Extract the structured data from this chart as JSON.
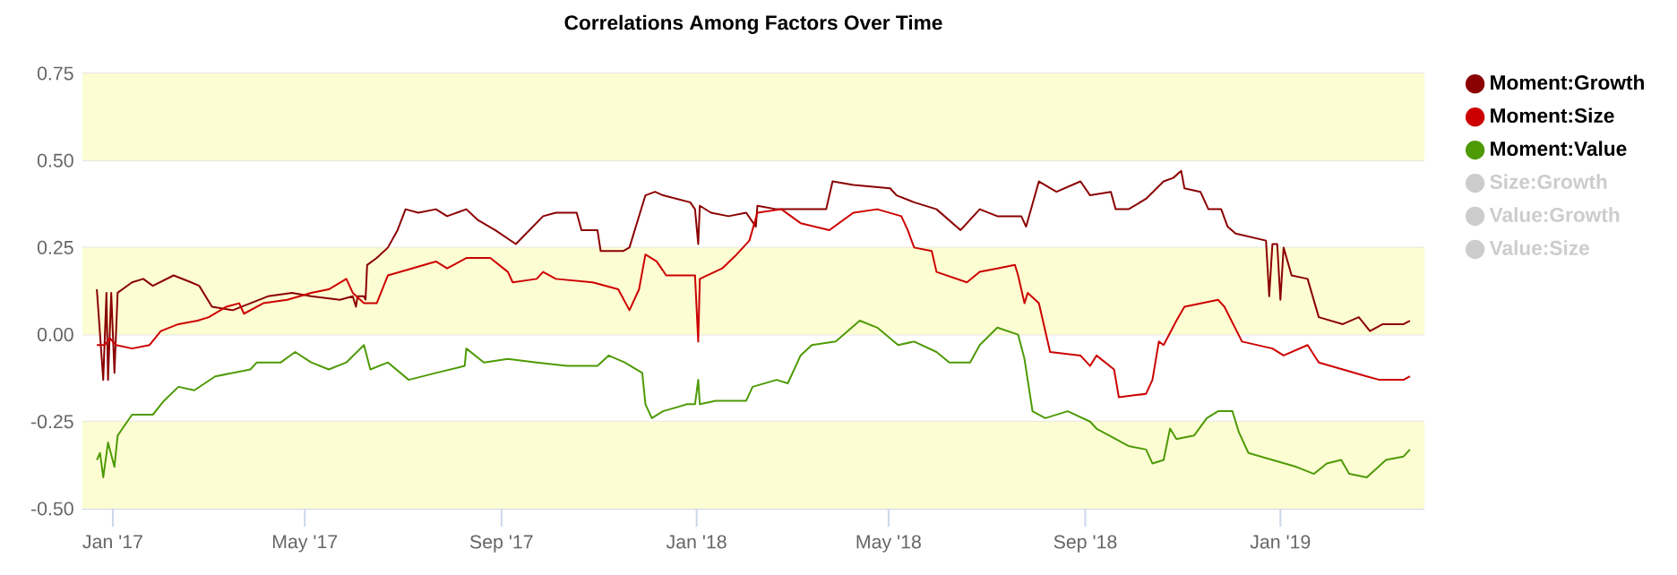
{
  "chart_data": {
    "type": "line",
    "title": "Correlations Among Factors Over Time",
    "xlim": [
      "2016-12-13",
      "2019-04-01"
    ],
    "xticks": [
      {
        "value": "2017-01-01",
        "label": "Jan '17"
      },
      {
        "value": "2017-05-01",
        "label": "May '17"
      },
      {
        "value": "2017-09-01",
        "label": "Sep '17"
      },
      {
        "value": "2018-01-01",
        "label": "Jan '18"
      },
      {
        "value": "2018-05-01",
        "label": "May '18"
      },
      {
        "value": "2018-09-01",
        "label": "Sep '18"
      },
      {
        "value": "2019-01-01",
        "label": "Jan '19"
      }
    ],
    "ylim": [
      -0.5,
      0.75
    ],
    "yticks": [
      {
        "value": -0.5,
        "label": "-0.50"
      },
      {
        "value": -0.25,
        "label": "-0.25"
      },
      {
        "value": 0,
        "label": "0.00"
      },
      {
        "value": 0.25,
        "label": "0.25"
      },
      {
        "value": 0.5,
        "label": "0.50"
      },
      {
        "value": 0.75,
        "label": "0.75"
      }
    ],
    "grid": "y",
    "legend": "right",
    "bands": [
      {
        "axis": "y",
        "from": 0.5,
        "to": 0.75,
        "color": "#fdfdd3"
      },
      {
        "axis": "y",
        "from": 0,
        "to": 0.25,
        "color": "#fdfdd3"
      },
      {
        "axis": "y",
        "from": -0.5,
        "to": -0.25,
        "color": "#fdfdd3"
      }
    ],
    "series": [
      {
        "name": "Moment:Growth",
        "color": "#8b0000",
        "x": [
          "2016-12-22",
          "2016-12-26",
          "2016-12-28",
          "2016-12-29",
          "2016-12-31",
          "2017-01-02",
          "2017-01-04",
          "2017-01-13",
          "2017-01-20",
          "2017-01-26",
          "2017-02-08",
          "2017-02-19",
          "2017-02-24",
          "2017-03-04",
          "2017-03-17",
          "2017-03-28",
          "2017-04-08",
          "2017-04-23",
          "2017-05-05",
          "2017-05-23",
          "2017-05-31",
          "2017-06-02",
          "2017-06-03",
          "2017-06-07",
          "2017-06-08",
          "2017-06-09",
          "2017-06-15",
          "2017-06-22",
          "2017-06-28",
          "2017-07-03",
          "2017-07-11",
          "2017-07-22",
          "2017-07-29",
          "2017-08-10",
          "2017-08-17",
          "2017-08-28",
          "2017-09-10",
          "2017-09-27",
          "2017-10-05",
          "2017-10-18",
          "2017-10-21",
          "2017-10-31",
          "2017-11-02",
          "2017-11-16",
          "2017-11-20",
          "2017-11-24",
          "2017-11-30",
          "2017-12-06",
          "2017-12-11",
          "2017-12-28",
          "2017-12-31",
          "2018-01-02",
          "2018-01-03",
          "2018-01-10",
          "2018-01-21",
          "2018-02-01",
          "2018-02-07",
          "2018-02-08",
          "2018-02-20",
          "2018-03-07",
          "2018-03-23",
          "2018-03-27",
          "2018-04-09",
          "2018-05-02",
          "2018-05-06",
          "2018-05-17",
          "2018-05-31",
          "2018-06-15",
          "2018-06-27",
          "2018-07-08",
          "2018-07-23",
          "2018-07-26",
          "2018-08-03",
          "2018-08-14",
          "2018-08-29",
          "2018-09-04",
          "2018-09-17",
          "2018-09-20",
          "2018-09-28",
          "2018-10-09",
          "2018-10-20",
          "2018-10-26",
          "2018-10-31",
          "2018-11-02",
          "2018-11-12",
          "2018-11-17",
          "2018-11-25",
          "2018-11-29",
          "2018-12-04",
          "2018-12-23",
          "2018-12-25",
          "2018-12-27",
          "2018-12-30",
          "2019-01-01",
          "2019-01-03",
          "2019-01-08",
          "2019-01-18",
          "2019-01-25",
          "2019-02-09",
          "2019-02-19",
          "2019-02-26",
          "2019-03-06",
          "2019-03-19",
          "2019-03-23"
        ],
        "values": [
          0.13,
          -0.13,
          0.12,
          -0.13,
          0.12,
          -0.11,
          0.12,
          0.15,
          0.16,
          0.14,
          0.17,
          0.15,
          0.14,
          0.08,
          0.07,
          0.09,
          0.11,
          0.12,
          0.11,
          0.1,
          0.11,
          0.08,
          0.11,
          0.11,
          0.1,
          0.2,
          0.22,
          0.25,
          0.3,
          0.36,
          0.35,
          0.36,
          0.34,
          0.36,
          0.33,
          0.3,
          0.26,
          0.34,
          0.35,
          0.35,
          0.3,
          0.3,
          0.24,
          0.24,
          0.25,
          0.31,
          0.4,
          0.41,
          0.4,
          0.38,
          0.36,
          0.26,
          0.37,
          0.35,
          0.34,
          0.35,
          0.31,
          0.37,
          0.36,
          0.36,
          0.36,
          0.44,
          0.43,
          0.42,
          0.4,
          0.38,
          0.36,
          0.3,
          0.36,
          0.34,
          0.34,
          0.31,
          0.44,
          0.41,
          0.44,
          0.4,
          0.41,
          0.36,
          0.36,
          0.39,
          0.44,
          0.45,
          0.47,
          0.42,
          0.41,
          0.36,
          0.36,
          0.31,
          0.29,
          0.27,
          0.11,
          0.26,
          0.26,
          0.1,
          0.25,
          0.17,
          0.16,
          0.05,
          0.03,
          0.05,
          0.01,
          0.03,
          0.03,
          0.04
        ]
      },
      {
        "name": "Moment:Size",
        "color": "#cc0000",
        "x": [
          "2016-12-22",
          "2016-12-27",
          "2016-12-30",
          "2017-01-03",
          "2017-01-13",
          "2017-01-24",
          "2017-01-31",
          "2017-02-11",
          "2017-02-23",
          "2017-03-02",
          "2017-03-13",
          "2017-03-21",
          "2017-03-24",
          "2017-04-05",
          "2017-04-20",
          "2017-05-05",
          "2017-05-16",
          "2017-05-27",
          "2017-05-31",
          "2017-06-07",
          "2017-06-15",
          "2017-06-22",
          "2017-07-07",
          "2017-07-22",
          "2017-07-29",
          "2017-08-10",
          "2017-08-25",
          "2017-09-05",
          "2017-09-08",
          "2017-09-23",
          "2017-09-27",
          "2017-10-05",
          "2017-10-28",
          "2017-11-13",
          "2017-11-20",
          "2017-11-26",
          "2017-11-30",
          "2017-12-07",
          "2017-12-13",
          "2017-12-31",
          "2018-01-02",
          "2018-01-03",
          "2018-01-17",
          "2018-01-26",
          "2018-02-03",
          "2018-02-08",
          "2018-02-23",
          "2018-03-07",
          "2018-03-25",
          "2018-04-09",
          "2018-04-24",
          "2018-05-09",
          "2018-05-13",
          "2018-05-17",
          "2018-05-28",
          "2018-05-31",
          "2018-06-19",
          "2018-06-27",
          "2018-07-08",
          "2018-07-19",
          "2018-07-21",
          "2018-07-25",
          "2018-07-27",
          "2018-08-03",
          "2018-08-10",
          "2018-08-29",
          "2018-09-04",
          "2018-09-08",
          "2018-09-19",
          "2018-09-22",
          "2018-10-09",
          "2018-10-13",
          "2018-10-17",
          "2018-10-20",
          "2018-10-28",
          "2018-11-02",
          "2018-11-23",
          "2018-11-27",
          "2018-12-08",
          "2018-12-27",
          "2019-01-03",
          "2019-01-18",
          "2019-01-25",
          "2019-02-09",
          "2019-02-24",
          "2019-03-04",
          "2019-03-19",
          "2019-03-23"
        ],
        "values": [
          -0.03,
          -0.03,
          -0.01,
          -0.03,
          -0.04,
          -0.03,
          0.01,
          0.03,
          0.04,
          0.05,
          0.08,
          0.09,
          0.06,
          0.09,
          0.1,
          0.12,
          0.13,
          0.16,
          0.12,
          0.09,
          0.09,
          0.17,
          0.19,
          0.21,
          0.19,
          0.22,
          0.22,
          0.18,
          0.15,
          0.16,
          0.18,
          0.16,
          0.15,
          0.13,
          0.07,
          0.13,
          0.23,
          0.21,
          0.17,
          0.17,
          -0.02,
          0.16,
          0.19,
          0.23,
          0.27,
          0.35,
          0.36,
          0.32,
          0.3,
          0.35,
          0.36,
          0.34,
          0.3,
          0.25,
          0.24,
          0.18,
          0.15,
          0.18,
          0.19,
          0.2,
          0.17,
          0.09,
          0.12,
          0.09,
          -0.05,
          -0.06,
          -0.09,
          -0.06,
          -0.1,
          -0.18,
          -0.17,
          -0.13,
          -0.02,
          -0.03,
          0.04,
          0.08,
          0.1,
          0.08,
          -0.02,
          -0.04,
          -0.06,
          -0.03,
          -0.08,
          -0.1,
          -0.12,
          -0.13,
          -0.13,
          -0.12
        ]
      },
      {
        "name": "Moment:Value",
        "color": "#4e9a06",
        "x": [
          "2016-12-22",
          "2016-12-24",
          "2016-12-26",
          "2016-12-29",
          "2017-01-02",
          "2017-01-04",
          "2017-01-07",
          "2017-01-13",
          "2017-01-26",
          "2017-02-02",
          "2017-02-11",
          "2017-02-21",
          "2017-03-06",
          "2017-03-17",
          "2017-03-28",
          "2017-04-01",
          "2017-04-16",
          "2017-04-25",
          "2017-05-05",
          "2017-05-16",
          "2017-05-27",
          "2017-06-07",
          "2017-06-11",
          "2017-06-22",
          "2017-07-05",
          "2017-07-22",
          "2017-08-09",
          "2017-08-10",
          "2017-08-21",
          "2017-09-05",
          "2017-09-23",
          "2017-10-12",
          "2017-10-31",
          "2017-11-07",
          "2017-11-17",
          "2017-11-28",
          "2017-11-30",
          "2017-12-04",
          "2017-12-11",
          "2017-12-26",
          "2017-12-31",
          "2018-01-02",
          "2018-01-03",
          "2018-01-13",
          "2018-02-01",
          "2018-02-05",
          "2018-02-20",
          "2018-02-27",
          "2018-03-07",
          "2018-03-14",
          "2018-03-29",
          "2018-04-13",
          "2018-04-24",
          "2018-05-07",
          "2018-05-17",
          "2018-05-31",
          "2018-06-08",
          "2018-06-21",
          "2018-06-27",
          "2018-07-08",
          "2018-07-21",
          "2018-07-25",
          "2018-07-30",
          "2018-08-07",
          "2018-08-21",
          "2018-09-04",
          "2018-09-08",
          "2018-09-28",
          "2018-10-09",
          "2018-10-13",
          "2018-10-20",
          "2018-10-24",
          "2018-10-28",
          "2018-11-08",
          "2018-11-16",
          "2018-11-23",
          "2018-12-02",
          "2018-12-06",
          "2018-12-12",
          "2018-12-27",
          "2019-01-11",
          "2019-01-22",
          "2019-01-30",
          "2019-02-08",
          "2019-02-13",
          "2019-02-24",
          "2019-03-08",
          "2019-03-19",
          "2019-03-23"
        ],
        "values": [
          -0.36,
          -0.34,
          -0.41,
          -0.31,
          -0.38,
          -0.29,
          -0.27,
          -0.23,
          -0.23,
          -0.19,
          -0.15,
          -0.16,
          -0.12,
          -0.11,
          -0.1,
          -0.08,
          -0.08,
          -0.05,
          -0.08,
          -0.1,
          -0.08,
          -0.03,
          -0.1,
          -0.08,
          -0.13,
          -0.11,
          -0.09,
          -0.04,
          -0.08,
          -0.07,
          -0.08,
          -0.09,
          -0.09,
          -0.06,
          -0.08,
          -0.11,
          -0.2,
          -0.24,
          -0.22,
          -0.2,
          -0.2,
          -0.13,
          -0.2,
          -0.19,
          -0.19,
          -0.15,
          -0.13,
          -0.14,
          -0.06,
          -0.03,
          -0.02,
          0.04,
          0.02,
          -0.03,
          -0.02,
          -0.05,
          -0.08,
          -0.08,
          -0.03,
          0.02,
          0,
          -0.07,
          -0.22,
          -0.24,
          -0.22,
          -0.25,
          -0.27,
          -0.32,
          -0.33,
          -0.37,
          -0.36,
          -0.27,
          -0.3,
          -0.29,
          -0.24,
          -0.22,
          -0.22,
          -0.28,
          -0.34,
          -0.36,
          -0.38,
          -0.4,
          -0.37,
          -0.36,
          -0.4,
          -0.41,
          -0.36,
          -0.35,
          -0.33
        ]
      },
      {
        "name": "Size:Growth",
        "color": "#cccccc"
      },
      {
        "name": "Value:Growth",
        "color": "#cccccc"
      },
      {
        "name": "Value:Size",
        "color": "#cccccc"
      }
    ]
  }
}
